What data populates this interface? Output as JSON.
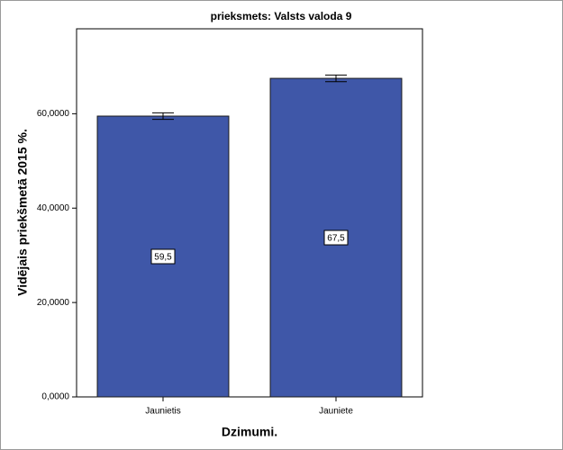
{
  "chart_data": {
    "type": "bar",
    "title": "prieksmets: Valsts valoda 9",
    "x_label": "Dzimumi.",
    "y_label": "Vidējais priekšmetā 2015 %.",
    "categories": [
      "Jaunietis",
      "Jauniete"
    ],
    "values": [
      59.5,
      67.5
    ],
    "value_labels": [
      "59,5",
      "67,5"
    ],
    "errors": [
      0.7,
      0.7
    ],
    "color": "#3f57a8",
    "ylim": [
      0,
      78
    ],
    "yticks": [
      {
        "value": 0,
        "label": "0,0000"
      },
      {
        "value": 20,
        "label": "20,0000"
      },
      {
        "value": 40,
        "label": "40,0000"
      },
      {
        "value": 60,
        "label": "60,0000"
      }
    ]
  }
}
